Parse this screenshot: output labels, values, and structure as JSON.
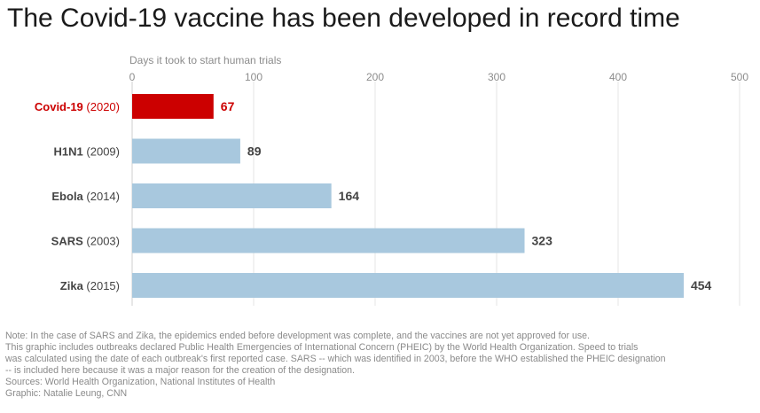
{
  "title": "The Covid-19 vaccine has been developed in record time",
  "colors": {
    "highlight": "#cc0000",
    "bar": "#a8c8de",
    "grid": "#e4e4e4",
    "axis_text": "#8c8c8c",
    "label_text": "#444444"
  },
  "chart_data": {
    "type": "bar",
    "orientation": "horizontal",
    "axis_title": "Days it took to start human trials",
    "xlim": [
      0,
      500
    ],
    "ticks": [
      0,
      100,
      200,
      300,
      400,
      500
    ],
    "grid": true,
    "categories": [
      {
        "name": "Covid-19",
        "year": "(2020)",
        "value": 67,
        "highlight": true
      },
      {
        "name": "H1N1",
        "year": "(2009)",
        "value": 89,
        "highlight": false
      },
      {
        "name": "Ebola",
        "year": "(2014)",
        "value": 164,
        "highlight": false
      },
      {
        "name": "SARS",
        "year": "(2003)",
        "value": 323,
        "highlight": false
      },
      {
        "name": "Zika",
        "year": "(2015)",
        "value": 454,
        "highlight": false
      }
    ]
  },
  "notes": [
    "Note: In the case of SARS and Zika, the epidemics ended before development was complete, and the vaccines are not yet approved for use.",
    "This graphic includes outbreaks declared Public Health Emergencies of International Concern (PHEIC) by the World Health Organization. Speed to trials",
    "was calculated using the date of each outbreak's first reported case. SARS -- which was identified in 2003, before the WHO established the PHEIC designation",
    "-- is included here because it was a major reason for the creation of the designation.",
    "Sources: World Health Organization, National Institutes of Health",
    "Graphic: Natalie Leung, CNN"
  ]
}
